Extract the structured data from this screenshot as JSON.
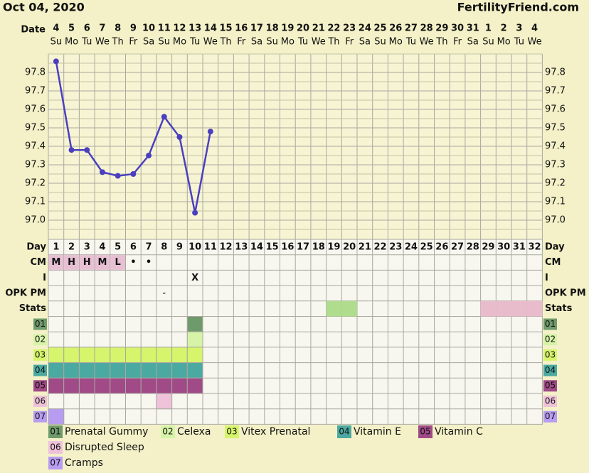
{
  "header": {
    "date": "Oct 04, 2020",
    "site": "FertilityFriend.com",
    "date_label": "Date"
  },
  "chart_data": {
    "type": "line",
    "categories": [
      "4",
      "5",
      "6",
      "7",
      "8",
      "9",
      "10",
      "11",
      "12",
      "13",
      "14",
      "15",
      "16",
      "17",
      "18",
      "19",
      "20",
      "21",
      "22",
      "23",
      "24",
      "25",
      "26",
      "27",
      "28",
      "29",
      "30",
      "31",
      "1",
      "2",
      "3",
      "4"
    ],
    "weekdays": [
      "Su",
      "Mo",
      "Tu",
      "We",
      "Th",
      "Fr",
      "Sa",
      "Su",
      "Mo",
      "Tu",
      "We",
      "Th",
      "Fr",
      "Sa",
      "Su",
      "Mo",
      "Tu",
      "We",
      "Th",
      "Fr",
      "Sa",
      "Su",
      "Mo",
      "Tu",
      "We",
      "Th",
      "Fr",
      "Sa",
      "Su",
      "Mo",
      "Tu",
      "We"
    ],
    "values": [
      97.86,
      97.38,
      97.38,
      97.26,
      97.24,
      97.25,
      97.35,
      97.56,
      97.45,
      97.04,
      97.48,
      null,
      null,
      null,
      null,
      null,
      null,
      null,
      null,
      null,
      null,
      null,
      null,
      null,
      null,
      null,
      null,
      null,
      null,
      null,
      null,
      null
    ],
    "color": "#4b3fc0",
    "ylim": [
      96.9,
      97.9
    ],
    "yticks": [
      {
        "value": 97,
        "label": "97.0"
      },
      97.1,
      97.2,
      97.3,
      97.4,
      97.5,
      97.6,
      97.7,
      97.8
    ],
    "grid": true
  },
  "table": {
    "row_labels": [
      "Day",
      "CM",
      "I",
      "OPK PM",
      "Stats"
    ],
    "days": [
      1,
      2,
      3,
      4,
      5,
      6,
      7,
      8,
      9,
      10,
      11,
      12,
      13,
      14,
      15,
      16,
      17,
      18,
      19,
      20,
      21,
      22,
      23,
      24,
      25,
      26,
      27,
      28,
      29,
      30,
      31,
      32
    ],
    "cm": [
      "M",
      "H",
      "H",
      "M",
      "L",
      "•",
      "•",
      null,
      null,
      null,
      null,
      null,
      null,
      null,
      null,
      null,
      null,
      null,
      null,
      null,
      null,
      null,
      null,
      null,
      null,
      null,
      null,
      null,
      null,
      null,
      null,
      null
    ],
    "cm_color": "#e8c0d4",
    "i": [
      null,
      null,
      null,
      null,
      null,
      null,
      null,
      null,
      null,
      "X",
      null,
      null,
      null,
      null,
      null,
      null,
      null,
      null,
      null,
      null,
      null,
      null,
      null,
      null,
      null,
      null,
      null,
      null,
      null,
      null,
      null,
      null
    ],
    "opk": [
      null,
      null,
      null,
      null,
      null,
      null,
      null,
      "-",
      null,
      null,
      null,
      null,
      null,
      null,
      null,
      null,
      null,
      null,
      null,
      null,
      null,
      null,
      null,
      null,
      null,
      null,
      null,
      null,
      null,
      null,
      null,
      null
    ],
    "stats": [
      {
        "days": [
          19,
          20
        ],
        "color": "#b0dc8e"
      },
      {
        "days": [
          29,
          30,
          31,
          32
        ],
        "color": "#e9bccb"
      }
    ]
  },
  "medications": [
    {
      "code": "01",
      "name": "Prenatal Gummy",
      "color": "#6f9a6b",
      "days": [
        10
      ]
    },
    {
      "code": "02",
      "name": "Celexa",
      "color": "#d6f3a8",
      "days": [
        10
      ]
    },
    {
      "code": "03",
      "name": "Vitex Prenatal",
      "color": "#d6f46c",
      "days": [
        1,
        2,
        3,
        4,
        5,
        6,
        7,
        8,
        9,
        10
      ]
    },
    {
      "code": "04",
      "name": "Vitamin E",
      "color": "#4aa9a1",
      "days": [
        1,
        2,
        3,
        4,
        5,
        6,
        7,
        8,
        9,
        10
      ]
    },
    {
      "code": "05",
      "name": "Vitamin C",
      "color": "#a04a87",
      "days": [
        1,
        2,
        3,
        4,
        5,
        6,
        7,
        8,
        9,
        10
      ]
    },
    {
      "code": "06",
      "name": "Disrupted Sleep",
      "color": "#efc2da",
      "days": [
        8
      ]
    },
    {
      "code": "07",
      "name": "Cramps",
      "color": "#b89cf2",
      "days": [
        1
      ]
    }
  ]
}
